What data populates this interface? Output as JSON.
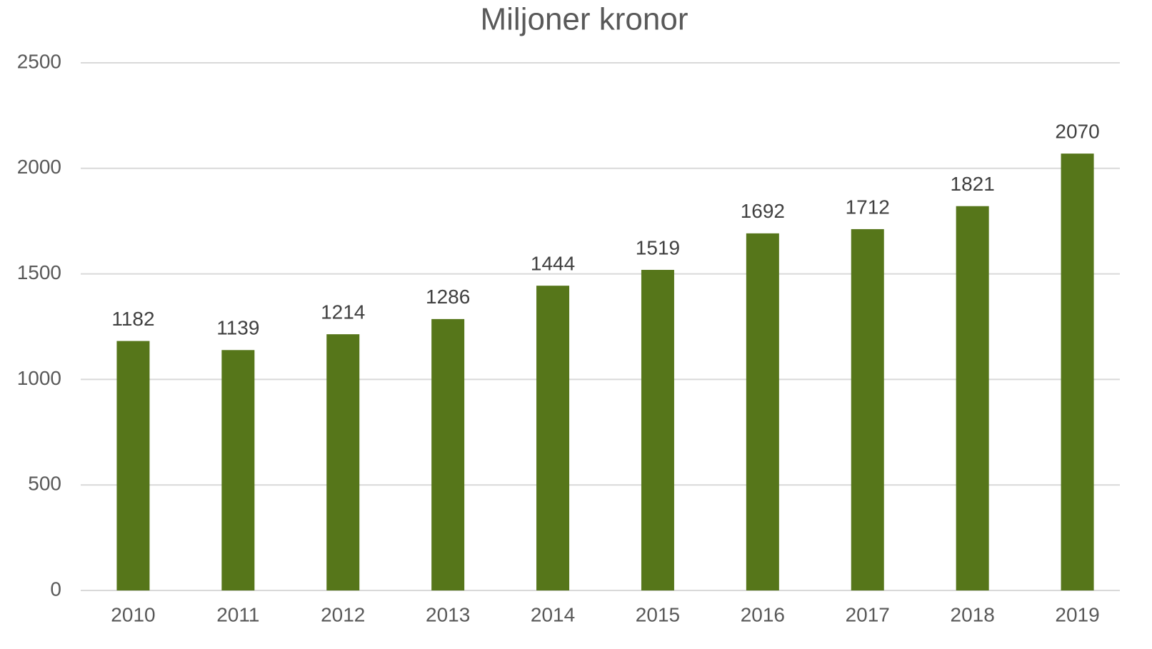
{
  "chart_data": {
    "type": "bar",
    "title": "Miljoner kronor",
    "categories": [
      "2010",
      "2011",
      "2012",
      "2013",
      "2014",
      "2015",
      "2016",
      "2017",
      "2018",
      "2019"
    ],
    "values": [
      1182,
      1139,
      1214,
      1286,
      1444,
      1519,
      1692,
      1712,
      1821,
      2070
    ],
    "color": "#56761a",
    "ylim": [
      0,
      2500
    ],
    "yticks": [
      0,
      500,
      1000,
      1500,
      2000,
      2500
    ],
    "grid": true,
    "data_labels": true
  }
}
